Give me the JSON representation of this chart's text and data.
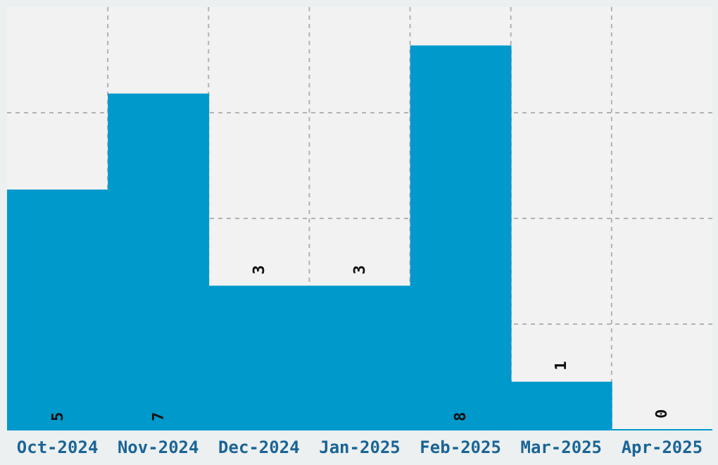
{
  "chart_data": {
    "type": "bar",
    "categories": [
      "Oct-2024",
      "Nov-2024",
      "Dec-2024",
      "Jan-2025",
      "Feb-2025",
      "Mar-2025",
      "Apr-2025"
    ],
    "values": [
      5,
      7,
      3,
      3,
      8,
      1,
      0
    ],
    "color": "#0099cc",
    "ylim": [
      0,
      8.8
    ],
    "grid": true,
    "data_labels": true,
    "tick_labels": "x"
  }
}
